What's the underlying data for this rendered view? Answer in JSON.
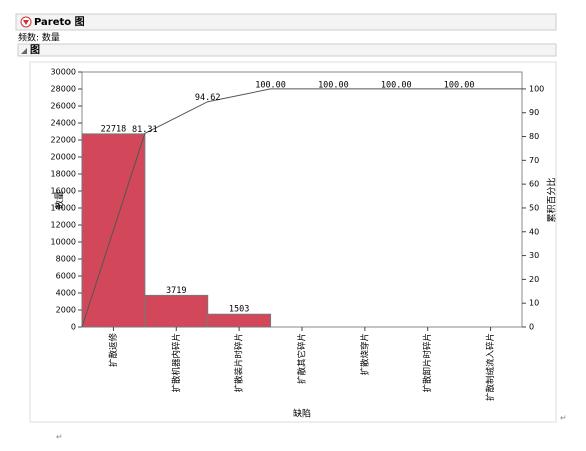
{
  "header": {
    "title": "Pareto 图",
    "frequency": "频数: 数量",
    "section": "图"
  },
  "chart_data": {
    "type": "pareto",
    "categories": [
      "扩散返修",
      "扩散机器内碎片",
      "扩散装片时碎片",
      "扩散其它碎片",
      "扩散烧穿片",
      "扩散卸片时碎片",
      "扩散制绒流入碎片"
    ],
    "series": [
      {
        "name": "数量",
        "color": "#d2475a",
        "values": [
          22718,
          3719,
          1503,
          0,
          0,
          0,
          0
        ],
        "value_labels": [
          "22718",
          "3719",
          "1503",
          null,
          null,
          null,
          null
        ]
      },
      {
        "name": "累积百分比",
        "color": "#555555",
        "axis": "y2",
        "values": [
          81.31,
          94.62,
          100,
          100,
          100,
          100,
          100
        ],
        "value_labels": [
          "81.31",
          "94.62",
          "100.00",
          "100.00",
          "100.00",
          "100.00",
          null
        ]
      }
    ],
    "xlabel": "缺陷",
    "ylabel": "数量",
    "y2label": "累积百分比",
    "ylim": [
      0,
      30000
    ],
    "yticks": [
      0,
      2000,
      4000,
      6000,
      8000,
      10000,
      12000,
      14000,
      16000,
      18000,
      20000,
      22000,
      24000,
      26000,
      28000,
      30000
    ],
    "y2lim": [
      0,
      107.1
    ],
    "y2ticks": [
      0,
      10,
      20,
      30,
      40,
      50,
      60,
      70,
      80,
      90,
      100
    ]
  }
}
